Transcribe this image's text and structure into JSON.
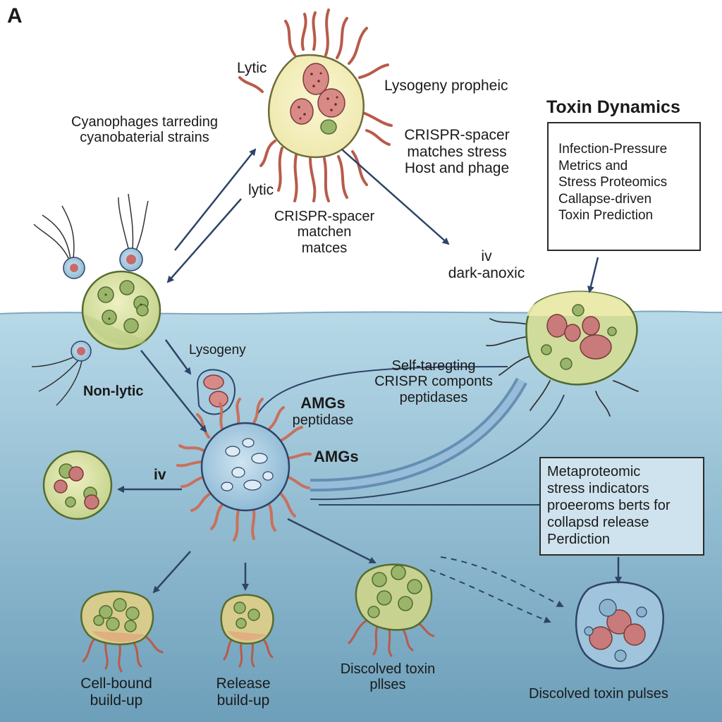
{
  "panel_letter": "A",
  "labels": {
    "lytic_top": "Lytic",
    "lysogeny_prophage": "Lysogeny propheic",
    "cyanophages": [
      "Cyanophages tarreding",
      "cyanobaterial strains"
    ],
    "crispr_host": [
      "CRISPR-spacer",
      "matches stress",
      "Host and phage"
    ],
    "lytic_mid": "lytic",
    "crispr_matchen": [
      "CRISPR-spacer",
      "matchen",
      "matces"
    ],
    "iv_dark": [
      "iv",
      "dark-anoxic"
    ],
    "toxin_dynamics_title": "Toxin Dynamics",
    "toxin_box": [
      "Infection-Pressure",
      "Metrics and",
      "Stress Proteomics",
      "Callapse-driven",
      "Toxin Prediction"
    ],
    "lysogeny": "Lysogeny",
    "non_lytic": "Non-lytic",
    "self_targeting": [
      "Self-taregting",
      "CRISPR componts",
      "peptidases"
    ],
    "amgs_peptidase": [
      "AMGs",
      "peptidase"
    ],
    "amgs": "AMGs",
    "iv_left": "iv",
    "metaproteomic_box": [
      "Metaproteomic",
      "stress indicators",
      "proeeroms berts for",
      "collapsd release",
      "Perdiction"
    ],
    "cell_bound": [
      "Cell-bound",
      "build-up"
    ],
    "release": [
      "Release",
      "build-up"
    ],
    "discolved_mid": [
      "Discolved toxin",
      "pllses"
    ],
    "discolved_right": "Discolved toxin pulses"
  },
  "colors": {
    "water_top": "#a9cfe0",
    "water_bottom": "#6fa3bd",
    "cell_fill": "#dfe6a8",
    "cell_stroke": "#556b2f",
    "arrow": "#2e4468",
    "tail": "#c9705c",
    "organelle_red": "#cf7b78",
    "organelle_green": "#96b86a",
    "phage_blue": "#a6cbe2"
  }
}
